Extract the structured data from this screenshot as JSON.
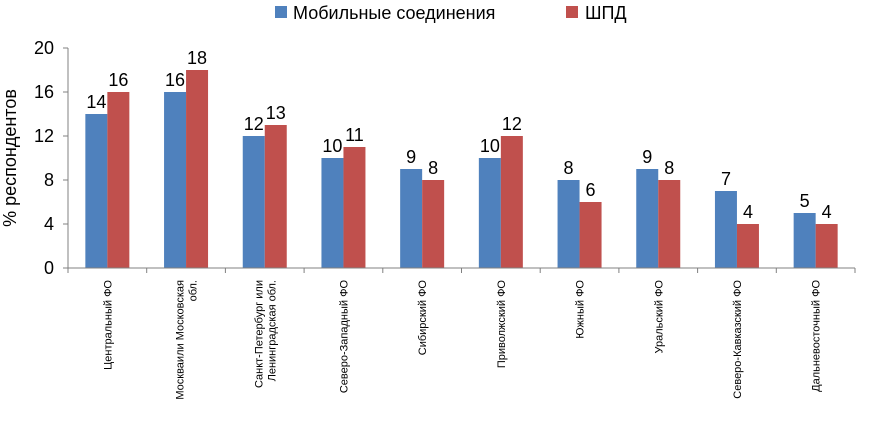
{
  "chart_data": {
    "type": "bar",
    "title": "",
    "xlabel": "",
    "ylabel": "% респондентов",
    "ylim": [
      0,
      20
    ],
    "yticks": [
      0,
      4,
      8,
      12,
      16,
      20
    ],
    "grid": false,
    "legend_position": "top",
    "categories": [
      [
        "Центральный ФО"
      ],
      [
        "Москваили Московская",
        "обл."
      ],
      [
        "Санкт-Петербург или",
        "Ленинградская обл."
      ],
      [
        "Северо-Западный ФО"
      ],
      [
        "Сибирский ФО"
      ],
      [
        "Приволжский ФО"
      ],
      [
        "Южный ФО"
      ],
      [
        "Уральский ФО"
      ],
      [
        "Северо-Кавказский ФО"
      ],
      [
        "Дальневосточный ФО"
      ]
    ],
    "series": [
      {
        "name": "Мобильные соединения",
        "color": "#4F81BD",
        "values": [
          14,
          16,
          12,
          10,
          9,
          10,
          8,
          9,
          7,
          5
        ]
      },
      {
        "name": "ШПД",
        "color": "#C0504D",
        "values": [
          16,
          18,
          13,
          11,
          8,
          12,
          6,
          8,
          4,
          4
        ]
      }
    ]
  }
}
